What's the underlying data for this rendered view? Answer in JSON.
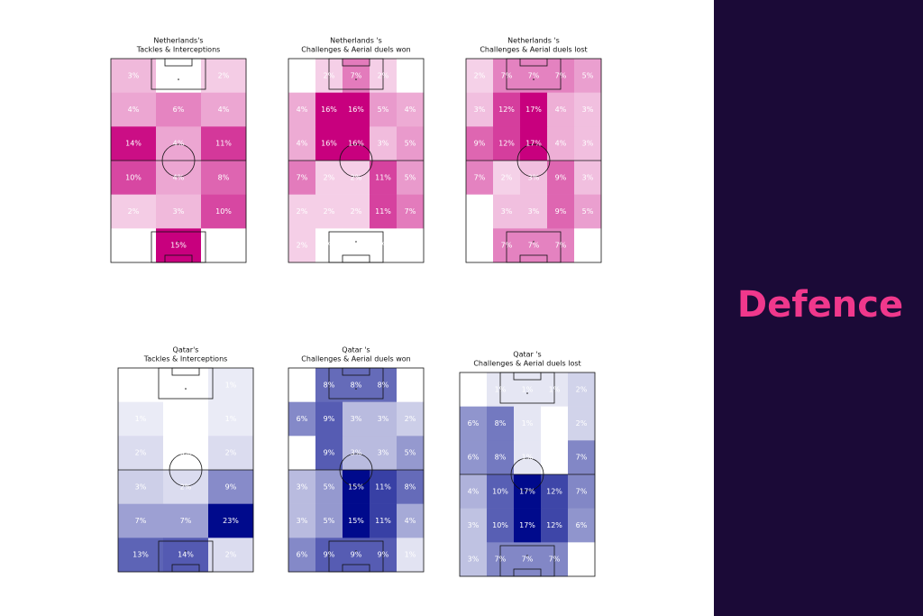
{
  "panel_title": "Defence",
  "chart_data": [
    {
      "type": "heatmap",
      "title_lines": [
        "Netherlands's",
        "Tackles & Interceptions"
      ],
      "color": "#c8007e",
      "values": [
        [
          3,
          0,
          2
        ],
        [
          4,
          6,
          4
        ],
        [
          14,
          4,
          11
        ],
        [
          10,
          4,
          8
        ],
        [
          2,
          3,
          10
        ],
        [
          0,
          15,
          0
        ]
      ],
      "value_labels": [
        [
          "3%",
          "0%",
          "2%"
        ],
        [
          "4%",
          "6%",
          "4%"
        ],
        [
          "14%",
          "4%",
          "11%"
        ],
        [
          "10%",
          "4%",
          "8%"
        ],
        [
          "2%",
          "3%",
          "10%"
        ],
        [
          "0%",
          "15%",
          "0%"
        ]
      ]
    },
    {
      "type": "heatmap",
      "title_lines": [
        "Netherlands 's",
        "Challenges & Aerial duels won"
      ],
      "color": "#c8007e",
      "values": [
        [
          0,
          2,
          7,
          2,
          0
        ],
        [
          4,
          16,
          16,
          5,
          4
        ],
        [
          4,
          16,
          16,
          3,
          5
        ],
        [
          7,
          2,
          2,
          11,
          5
        ],
        [
          2,
          2,
          2,
          11,
          7
        ],
        [
          2,
          0,
          0,
          0,
          0
        ]
      ],
      "value_labels": [
        [
          "0%",
          "2%",
          "7%",
          "2%",
          "0%"
        ],
        [
          "4%",
          "16%",
          "16%",
          "5%",
          "4%"
        ],
        [
          "4%",
          "16%",
          "16%",
          "3%",
          "5%"
        ],
        [
          "7%",
          "2%",
          "2%",
          "11%",
          "5%"
        ],
        [
          "2%",
          "2%",
          "2%",
          "11%",
          "7%"
        ],
        [
          "2%",
          "0%",
          "0%",
          "0%",
          "0%"
        ]
      ]
    },
    {
      "type": "heatmap",
      "title_lines": [
        "Netherlands 's",
        "Challenges & Aerial duels lost"
      ],
      "color": "#c8007e",
      "values": [
        [
          2,
          7,
          7,
          7,
          5
        ],
        [
          3,
          12,
          17,
          4,
          3
        ],
        [
          9,
          12,
          17,
          4,
          3
        ],
        [
          7,
          2,
          3,
          9,
          3
        ],
        [
          0,
          3,
          3,
          9,
          5
        ],
        [
          0,
          7,
          7,
          7,
          0
        ]
      ],
      "value_labels": [
        [
          "2%",
          "7%",
          "7%",
          "7%",
          "5%"
        ],
        [
          "3%",
          "12%",
          "17%",
          "4%",
          "3%"
        ],
        [
          "9%",
          "12%",
          "17%",
          "4%",
          "3%"
        ],
        [
          "7%",
          "2%",
          "3%",
          "9%",
          "3%"
        ],
        [
          "0%",
          "3%",
          "3%",
          "9%",
          "5%"
        ],
        [
          "0%",
          "7%",
          "7%",
          "7%",
          "0%"
        ]
      ]
    },
    {
      "type": "heatmap",
      "title_lines": [
        "Qatar's",
        "Tackles & Interceptions"
      ],
      "color": "#000a8c",
      "values": [
        [
          0,
          0,
          1
        ],
        [
          1,
          0,
          1
        ],
        [
          2,
          0,
          2
        ],
        [
          3,
          2,
          9
        ],
        [
          7,
          7,
          23
        ],
        [
          13,
          14,
          2
        ]
      ],
      "value_labels": [
        [
          "0%",
          "0%",
          "1%"
        ],
        [
          "1%",
          "0%",
          "1%"
        ],
        [
          "2%",
          "0%",
          "2%"
        ],
        [
          "3%",
          "2%",
          "9%"
        ],
        [
          "7%",
          "7%",
          "23%"
        ],
        [
          "13%",
          "14%",
          "2%"
        ]
      ]
    },
    {
      "type": "heatmap",
      "title_lines": [
        "Qatar 's",
        "Challenges & Aerial duels won"
      ],
      "color": "#000a8c",
      "values": [
        [
          0,
          8,
          8,
          8,
          0
        ],
        [
          6,
          9,
          3,
          3,
          2
        ],
        [
          0,
          9,
          3,
          3,
          5
        ],
        [
          3,
          5,
          15,
          11,
          8
        ],
        [
          3,
          5,
          15,
          11,
          4
        ],
        [
          6,
          9,
          9,
          9,
          1
        ]
      ],
      "value_labels": [
        [
          "0%",
          "8%",
          "8%",
          "8%",
          "0%"
        ],
        [
          "6%",
          "9%",
          "3%",
          "3%",
          "2%"
        ],
        [
          "0%",
          "9%",
          "3%",
          "3%",
          "5%"
        ],
        [
          "3%",
          "5%",
          "15%",
          "11%",
          "8%"
        ],
        [
          "3%",
          "5%",
          "15%",
          "11%",
          "4%"
        ],
        [
          "6%",
          "9%",
          "9%",
          "9%",
          "1%"
        ]
      ]
    },
    {
      "type": "heatmap",
      "title_lines": [
        "Qatar 's",
        "Challenges & Aerial duels lost"
      ],
      "color": "#000a8c",
      "values": [
        [
          0,
          1,
          1,
          1,
          2
        ],
        [
          6,
          8,
          1,
          0,
          2
        ],
        [
          6,
          8,
          1,
          0,
          7
        ],
        [
          4,
          10,
          17,
          12,
          7
        ],
        [
          3,
          10,
          17,
          12,
          6
        ],
        [
          3,
          7,
          7,
          7,
          0
        ]
      ],
      "value_labels": [
        [
          "0%",
          "1%",
          "1%",
          "1%",
          "2%"
        ],
        [
          "6%",
          "8%",
          "1%",
          "0%",
          "2%"
        ],
        [
          "6%",
          "8%",
          "1%",
          "0%",
          "7%"
        ],
        [
          "4%",
          "10%",
          "17%",
          "12%",
          "7%"
        ],
        [
          "3%",
          "10%",
          "17%",
          "12%",
          "6%"
        ],
        [
          "3%",
          "7%",
          "7%",
          "7%",
          "0%"
        ]
      ]
    }
  ]
}
